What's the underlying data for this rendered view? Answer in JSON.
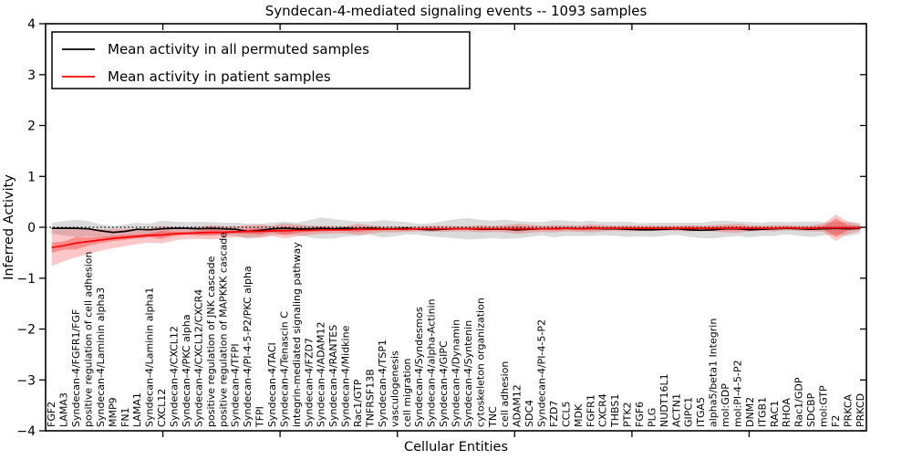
{
  "chart_data": {
    "type": "line",
    "title": "Syndecan-4-mediated signaling events -- 1093 samples",
    "xlabel": "Cellular Entities",
    "ylabel": "Inferred Activity",
    "ylim": [
      -4,
      4
    ],
    "ytick_values": [
      4,
      3,
      2,
      1,
      0,
      -1,
      -2,
      -3,
      -4
    ],
    "ytick_labels": [
      "4",
      "3",
      "2",
      "1",
      "0",
      "−1",
      "−2",
      "−3",
      "−4"
    ],
    "x_tick_divisions": 7,
    "zero_line": true,
    "grid": false,
    "legend_position": "upper left",
    "categories": [
      "FGF2",
      "LAMA3",
      "Syndecan-4/FGFR1/FGF",
      "positive regulation of cell adhesion",
      "Syndecan-4/Laminin alpha3",
      "MMP9",
      "FN1",
      "LAMA1",
      "Syndecan-4/Laminin alpha1",
      "CXCL12",
      "Syndecan-4/CXCL12",
      "Syndecan-4/PKC alpha",
      "Syndecan-4/CXCL12/CXCR4",
      "positive regulation of JNK cascade",
      "positive regulation of MAPKKK cascade",
      "Syndecan-4/TFPI",
      "Syndecan-4/PI-4-5-P2/PKC alpha",
      "TFPI",
      "Syndecan-4/TACI",
      "Syndecan-4/Tenascin C",
      "integrin-mediated signaling pathway",
      "Syndecan-4/FZD7",
      "Syndecan-4/ADAM12",
      "Syndecan-4/RANTES",
      "Syndecan-4/Midkine",
      "Rac1/GTP",
      "TNFRSF13B",
      "Syndecan-4/TSP1",
      "vasculogenesis",
      "cell migration",
      "Syndecan-4/Syndesmos",
      "Syndecan-4/alpha-Actinin",
      "Syndecan-4/GIPC",
      "Syndecan-4/Dynamin",
      "Syndecan-4/Syntenin",
      "cytoskeleton organization",
      "TNC",
      "cell adhesion",
      "ADAM12",
      "SDC4",
      "Syndecan-4/PI-4-5-P2",
      "FZD7",
      "CCL5",
      "MDK",
      "FGFR1",
      "CXCR4",
      "THBS1",
      "PTK2",
      "FGF6",
      "PLG",
      "NUDT16L1",
      "ACTN1",
      "GIPC1",
      "ITGA5",
      "alpha5/beta1 Integrin",
      "mol:GDP",
      "mol:PI-4-5-P2",
      "DNM2",
      "ITGB1",
      "RAC1",
      "RHOA",
      "Rac1/GDP",
      "SDCBP",
      "mol:GTP",
      "F2",
      "PRKCA",
      "PRKCD"
    ],
    "series": [
      {
        "name": "Mean activity in all permuted samples",
        "color": "#000000",
        "values": [
          -0.02,
          -0.02,
          -0.02,
          -0.03,
          -0.07,
          -0.1,
          -0.08,
          -0.04,
          -0.05,
          -0.03,
          -0.02,
          -0.02,
          -0.03,
          -0.02,
          -0.03,
          -0.04,
          -0.08,
          -0.06,
          -0.03,
          -0.02,
          -0.03,
          -0.03,
          -0.02,
          -0.03,
          -0.02,
          -0.03,
          -0.02,
          -0.03,
          -0.03,
          -0.02,
          -0.04,
          -0.05,
          -0.04,
          -0.03,
          -0.03,
          -0.04,
          -0.04,
          -0.04,
          -0.05,
          -0.04,
          -0.03,
          -0.03,
          -0.02,
          -0.03,
          -0.02,
          -0.03,
          -0.03,
          -0.04,
          -0.05,
          -0.05,
          -0.04,
          -0.03,
          -0.05,
          -0.06,
          -0.05,
          -0.03,
          -0.03,
          -0.05,
          -0.04,
          -0.03,
          -0.02,
          -0.03,
          -0.04,
          -0.03,
          -0.02,
          -0.03,
          -0.02
        ]
      },
      {
        "name": "Mean activity in patient samples",
        "color": "#ff0000",
        "values": [
          -0.4,
          -0.36,
          -0.31,
          -0.28,
          -0.25,
          -0.22,
          -0.2,
          -0.18,
          -0.16,
          -0.15,
          -0.13,
          -0.12,
          -0.11,
          -0.1,
          -0.1,
          -0.09,
          -0.08,
          -0.08,
          -0.07,
          -0.07,
          -0.06,
          -0.06,
          -0.05,
          -0.05,
          -0.05,
          -0.04,
          -0.04,
          -0.04,
          -0.04,
          -0.04,
          -0.03,
          -0.03,
          -0.03,
          -0.03,
          -0.03,
          -0.03,
          -0.03,
          -0.03,
          -0.03,
          -0.03,
          -0.03,
          -0.03,
          -0.02,
          -0.03,
          -0.02,
          -0.02,
          -0.02,
          -0.02,
          -0.02,
          -0.02,
          -0.02,
          -0.02,
          -0.02,
          -0.02,
          -0.02,
          -0.02,
          -0.02,
          -0.02,
          -0.02,
          -0.02,
          -0.01,
          -0.02,
          -0.02,
          -0.01,
          -0.01,
          -0.01,
          -0.01
        ]
      }
    ],
    "bands": [
      {
        "name": "permuted-samples-range",
        "series": 0,
        "fill": "rgba(110,110,110,0.25)",
        "halfwidths": [
          0.11,
          0.14,
          0.17,
          0.15,
          0.13,
          0.12,
          0.14,
          0.13,
          0.12,
          0.16,
          0.13,
          0.12,
          0.14,
          0.12,
          0.12,
          0.13,
          0.15,
          0.13,
          0.12,
          0.13,
          0.12,
          0.17,
          0.21,
          0.19,
          0.16,
          0.14,
          0.13,
          0.17,
          0.15,
          0.12,
          0.11,
          0.13,
          0.16,
          0.19,
          0.21,
          0.19,
          0.17,
          0.19,
          0.17,
          0.15,
          0.13,
          0.17,
          0.15,
          0.14,
          0.15,
          0.13,
          0.14,
          0.15,
          0.13,
          0.14,
          0.13,
          0.12,
          0.14,
          0.15,
          0.17,
          0.16,
          0.14,
          0.15,
          0.13,
          0.14,
          0.12,
          0.14,
          0.15,
          0.13,
          0.12,
          0.14,
          0.11
        ]
      },
      {
        "name": "patient-samples-range",
        "series": 1,
        "fill": "rgba(255,0,0,0.22)",
        "halfwidths": [
          0.36,
          0.31,
          0.28,
          0.24,
          0.21,
          0.19,
          0.17,
          0.15,
          0.14,
          0.17,
          0.13,
          0.11,
          0.12,
          0.14,
          0.12,
          0.1,
          0.12,
          0.13,
          0.1,
          0.15,
          0.12,
          0.09,
          0.08,
          0.07,
          0.07,
          0.11,
          0.08,
          0.06,
          0.06,
          0.05,
          0.05,
          0.06,
          0.06,
          0.05,
          0.05,
          0.07,
          0.06,
          0.07,
          0.1,
          0.08,
          0.06,
          0.07,
          0.06,
          0.06,
          0.08,
          0.06,
          0.05,
          0.06,
          0.05,
          0.05,
          0.05,
          0.05,
          0.06,
          0.05,
          0.06,
          0.08,
          0.09,
          0.06,
          0.05,
          0.06,
          0.05,
          0.05,
          0.06,
          0.08,
          0.26,
          0.12,
          0.06
        ]
      },
      {
        "name": "patient-samples-core",
        "series": 1,
        "fill": "rgba(255,0,0,0.30)",
        "halfwidths": [
          0.1,
          0.08,
          0.12,
          0.08,
          0.06,
          0.05,
          0.05,
          0.04,
          0.04,
          0.08,
          0.04,
          0.03,
          0.04,
          0.07,
          0.04,
          0.03,
          0.05,
          0.06,
          0.03,
          0.08,
          0.05,
          0.03,
          0.03,
          0.02,
          0.02,
          0.05,
          0.03,
          0.02,
          0.02,
          0.02,
          0.02,
          0.02,
          0.02,
          0.02,
          0.02,
          0.03,
          0.02,
          0.03,
          0.05,
          0.03,
          0.02,
          0.03,
          0.02,
          0.02,
          0.04,
          0.02,
          0.02,
          0.02,
          0.02,
          0.02,
          0.02,
          0.02,
          0.03,
          0.02,
          0.02,
          0.04,
          0.04,
          0.02,
          0.02,
          0.02,
          0.02,
          0.02,
          0.02,
          0.03,
          0.18,
          0.05,
          0.03
        ]
      }
    ]
  }
}
